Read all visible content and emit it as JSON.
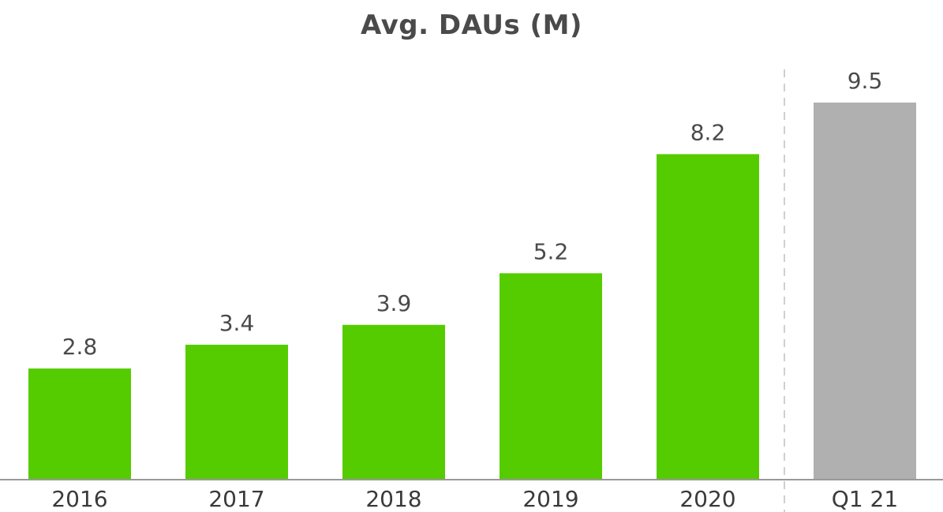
{
  "chart_data": {
    "type": "bar",
    "title": "Avg. DAUs (M)",
    "categories": [
      "2016",
      "2017",
      "2018",
      "2019",
      "2020",
      "Q1 21"
    ],
    "values": [
      2.8,
      3.4,
      3.9,
      5.2,
      8.2,
      9.5
    ],
    "value_labels": [
      "2.8",
      "3.4",
      "3.9",
      "5.2",
      "8.2",
      "9.5"
    ],
    "xlabel": "",
    "ylabel": "",
    "ylim": [
      0,
      9.5
    ],
    "grid": false,
    "colors": {
      "annual_bar": "#55cc00",
      "quarter_bar": "#b0b0b0",
      "axis": "#999999",
      "divider": "#cfcfcf",
      "text": "#4a4a4a"
    }
  }
}
